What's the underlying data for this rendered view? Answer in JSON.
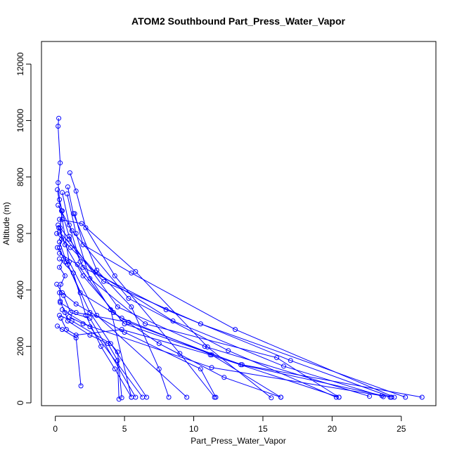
{
  "chart_data": {
    "type": "line",
    "title": "ATOM2 Southbound Part_Press_Water_Vapor",
    "xlabel": "Part_Press_Water_Vapor",
    "ylabel": "Altitude (m)",
    "xlim": [
      -1.0,
      27.5
    ],
    "ylim": [
      -100,
      12800
    ],
    "x_ticks": [
      0,
      5,
      10,
      15,
      20,
      25
    ],
    "y_ticks": [
      0,
      2000,
      4000,
      6000,
      8000,
      10000,
      12000
    ],
    "grid": false,
    "legend": "none",
    "color": "#0000ff",
    "series": [
      {
        "points": [
          [
            0.25,
            10080
          ],
          [
            0.2,
            9800
          ],
          [
            0.35,
            8500
          ],
          [
            0.2,
            7800
          ],
          [
            0.3,
            7200
          ],
          [
            0.5,
            6800
          ],
          [
            0.35,
            6200
          ],
          [
            0.45,
            5800
          ],
          [
            0.3,
            5500
          ],
          [
            0.6,
            5100
          ],
          [
            0.3,
            4800
          ],
          [
            0.7,
            4500
          ],
          [
            0.4,
            4200
          ],
          [
            0.3,
            3900
          ],
          [
            0.35,
            3600
          ],
          [
            0.7,
            3200
          ],
          [
            0.9,
            2900
          ],
          [
            2.5,
            2400
          ],
          [
            3.8,
            2100
          ],
          [
            4.5,
            1500
          ],
          [
            4.6,
            130
          ]
        ]
      },
      {
        "points": [
          [
            1.05,
            8150
          ],
          [
            1.5,
            7500
          ],
          [
            2.2,
            6200
          ],
          [
            4.3,
            4500
          ],
          [
            9.0,
            1750
          ],
          [
            11.5,
            200
          ]
        ]
      },
      {
        "points": [
          [
            0.9,
            7650
          ],
          [
            1.3,
            6700
          ],
          [
            3.0,
            4700
          ],
          [
            5.5,
            3400
          ],
          [
            7.5,
            1200
          ],
          [
            8.2,
            200
          ]
        ]
      },
      {
        "points": [
          [
            0.5,
            7450
          ],
          [
            1.0,
            6300
          ],
          [
            1.8,
            5000
          ],
          [
            4.0,
            3300
          ],
          [
            5.5,
            200
          ]
        ]
      },
      {
        "points": [
          [
            0.85,
            7400
          ],
          [
            1.5,
            6000
          ],
          [
            2.5,
            4400
          ],
          [
            6.5,
            2800
          ],
          [
            16.0,
            1600
          ],
          [
            20.5,
            200
          ]
        ]
      },
      {
        "points": [
          [
            0.15,
            7550
          ],
          [
            0.5,
            6500
          ],
          [
            1.0,
            5000
          ],
          [
            3.0,
            3100
          ],
          [
            9.5,
            200
          ]
        ]
      },
      {
        "points": [
          [
            0.2,
            7000
          ],
          [
            1.2,
            6100
          ],
          [
            5.3,
            3700
          ],
          [
            12.5,
            1850
          ],
          [
            20.3,
            200
          ]
        ]
      },
      {
        "points": [
          [
            0.45,
            6800
          ],
          [
            1.0,
            5900
          ],
          [
            2.0,
            4800
          ],
          [
            8.0,
            3300
          ],
          [
            17.0,
            1500
          ],
          [
            24.3,
            200
          ]
        ]
      },
      {
        "points": [
          [
            1.4,
            6700
          ],
          [
            2.0,
            5600
          ],
          [
            5.5,
            4600
          ],
          [
            13.0,
            2600
          ],
          [
            24.5,
            200
          ]
        ]
      },
      {
        "points": [
          [
            0.3,
            6500
          ],
          [
            1.9,
            6350
          ],
          [
            5.8,
            4650
          ],
          [
            11.0,
            1980
          ],
          [
            15.6,
            180
          ]
        ]
      },
      {
        "points": [
          [
            0.2,
            6300
          ],
          [
            1.0,
            5800
          ],
          [
            4.5,
            3400
          ],
          [
            10.8,
            2000
          ],
          [
            22.7,
            230
          ]
        ]
      },
      {
        "points": [
          [
            0.25,
            6200
          ],
          [
            0.7,
            5600
          ],
          [
            2.0,
            4500
          ],
          [
            5.0,
            2800
          ],
          [
            13.5,
            1350
          ],
          [
            26.5,
            200
          ]
        ]
      },
      {
        "points": [
          [
            0.3,
            6050
          ],
          [
            2.9,
            4630
          ],
          [
            8.5,
            2900
          ],
          [
            16.5,
            1300
          ],
          [
            23.7,
            220
          ]
        ]
      },
      {
        "points": [
          [
            0.1,
            6000
          ],
          [
            1.1,
            5500
          ],
          [
            3.5,
            4300
          ],
          [
            10.5,
            2800
          ],
          [
            25.3,
            200
          ]
        ]
      },
      {
        "points": [
          [
            0.3,
            5700
          ],
          [
            0.8,
            5000
          ],
          [
            1.8,
            3900
          ],
          [
            4.8,
            3000
          ],
          [
            11.3,
            1700
          ],
          [
            16.3,
            200
          ]
        ]
      },
      {
        "points": [
          [
            0.15,
            5500
          ],
          [
            0.9,
            4900
          ],
          [
            2.5,
            3200
          ],
          [
            6.6,
            200
          ]
        ]
      },
      {
        "points": [
          [
            0.3,
            5300
          ],
          [
            1.6,
            4900
          ],
          [
            4.2,
            3200
          ],
          [
            7.5,
            2100
          ],
          [
            12.2,
            900
          ],
          [
            16.3,
            200
          ]
        ]
      },
      {
        "points": [
          [
            0.3,
            5100
          ],
          [
            1.3,
            4600
          ],
          [
            2.2,
            3100
          ],
          [
            3.3,
            2000
          ],
          [
            4.3,
            1200
          ],
          [
            5.5,
            200
          ]
        ]
      },
      {
        "points": [
          [
            0.1,
            4200
          ],
          [
            0.5,
            3900
          ],
          [
            1.5,
            3500
          ],
          [
            5.0,
            2500
          ],
          [
            10.5,
            1200
          ],
          [
            11.6,
            200
          ]
        ]
      },
      {
        "points": [
          [
            0.15,
            2720
          ],
          [
            0.5,
            2600
          ],
          [
            1.5,
            2300
          ],
          [
            1.85,
            600
          ]
        ]
      },
      {
        "points": [
          [
            0.3,
            3100
          ],
          [
            1.2,
            2900
          ],
          [
            4.0,
            2100
          ],
          [
            4.5,
            1800
          ],
          [
            4.8,
            180
          ]
        ]
      },
      {
        "points": [
          [
            0.5,
            3300
          ],
          [
            2.5,
            2700
          ],
          [
            6.3,
            200
          ]
        ]
      },
      {
        "points": [
          [
            0.35,
            3550
          ],
          [
            1.5,
            3200
          ],
          [
            5.3,
            2850
          ],
          [
            13.4,
            1350
          ],
          [
            24.2,
            200
          ]
        ]
      },
      {
        "points": [
          [
            0.6,
            3800
          ],
          [
            1.1,
            3200
          ],
          [
            2.5,
            3000
          ],
          [
            5.8,
            200
          ]
        ]
      },
      {
        "points": [
          [
            0.4,
            3000
          ],
          [
            0.8,
            2600
          ],
          [
            1.5,
            2400
          ],
          [
            4.8,
            2600
          ],
          [
            11.2,
            1700
          ],
          [
            20.5,
            200
          ]
        ]
      },
      {
        "points": [
          [
            1.0,
            3050
          ],
          [
            2.0,
            2800
          ],
          [
            11.3,
            1250
          ],
          [
            23.6,
            250
          ]
        ]
      }
    ]
  }
}
